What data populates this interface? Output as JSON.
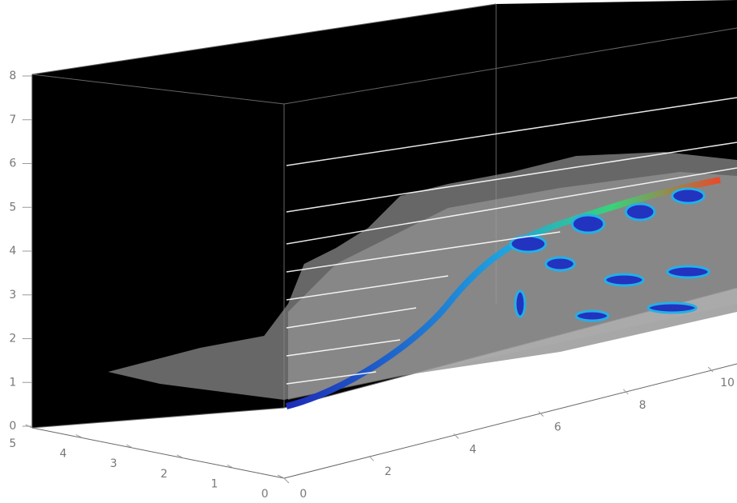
{
  "axes": {
    "z": {
      "ticks": [
        0,
        1,
        2,
        3,
        4,
        5,
        6,
        7,
        8
      ]
    },
    "y": {
      "ticks": [
        5,
        4,
        3,
        2,
        1,
        0
      ]
    },
    "x": {
      "ticks": [
        0,
        2,
        4,
        6,
        8,
        10
      ]
    }
  }
}
